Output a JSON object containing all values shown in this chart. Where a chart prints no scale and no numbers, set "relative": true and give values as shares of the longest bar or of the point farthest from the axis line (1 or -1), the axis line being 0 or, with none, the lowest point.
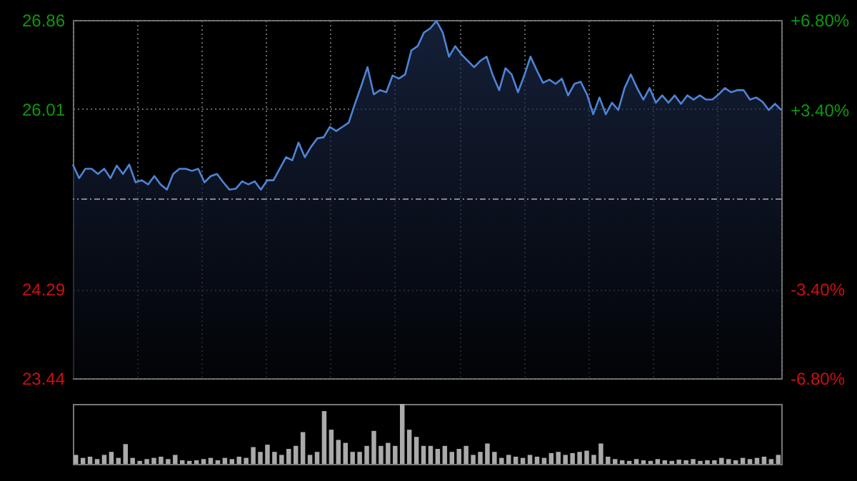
{
  "chart_data": [
    {
      "type": "area",
      "categories": [
        null,
        null,
        null,
        null,
        null,
        null,
        null,
        null,
        null,
        null,
        null,
        null,
        null,
        null,
        null,
        null,
        null,
        null,
        null,
        null,
        null,
        null,
        null,
        null,
        null,
        null,
        null,
        null,
        null,
        null,
        null,
        null,
        null,
        null,
        null,
        null,
        null,
        null,
        null,
        null,
        null,
        null,
        null,
        null,
        null,
        null,
        null,
        null,
        null,
        null,
        null,
        null,
        null,
        null,
        null,
        null,
        null,
        null,
        null,
        null,
        null,
        null,
        null,
        null,
        null,
        null,
        null,
        null,
        null,
        null,
        null,
        null,
        null,
        null,
        null,
        null,
        null,
        null,
        null,
        null,
        null,
        null,
        null,
        null,
        null,
        null,
        null,
        null,
        null,
        null,
        null,
        null,
        null,
        null,
        null,
        null,
        null,
        null,
        null,
        null,
        null,
        null,
        null,
        null,
        null,
        null,
        null,
        null,
        null,
        null,
        null,
        null,
        null,
        null
      ],
      "series": [
        {
          "color": "#4d84d6",
          "values": [
            25.48,
            25.35,
            25.44,
            25.44,
            25.39,
            25.44,
            25.35,
            25.47,
            25.39,
            25.48,
            25.31,
            25.33,
            25.29,
            25.37,
            25.29,
            25.24,
            25.39,
            25.44,
            25.44,
            25.42,
            25.44,
            25.31,
            25.37,
            25.39,
            25.31,
            25.24,
            25.25,
            25.32,
            25.29,
            25.32,
            25.24,
            25.33,
            25.33,
            25.44,
            25.55,
            25.52,
            25.69,
            25.55,
            25.65,
            25.73,
            25.74,
            25.84,
            25.8,
            25.84,
            25.88,
            26.06,
            26.23,
            26.41,
            26.15,
            26.19,
            26.17,
            26.33,
            26.3,
            26.34,
            26.57,
            26.61,
            26.74,
            26.78,
            26.85,
            26.74,
            26.51,
            26.61,
            26.53,
            26.47,
            26.41,
            26.47,
            26.51,
            26.33,
            26.19,
            26.4,
            26.34,
            26.17,
            26.33,
            26.51,
            26.38,
            26.26,
            26.29,
            26.25,
            26.3,
            26.14,
            26.25,
            26.27,
            26.15,
            25.96,
            26.12,
            25.96,
            26.07,
            26.0,
            26.21,
            26.34,
            26.21,
            26.1,
            26.21,
            26.07,
            26.14,
            26.07,
            26.14,
            26.06,
            26.14,
            26.1,
            26.14,
            26.1,
            26.1,
            26.15,
            26.21,
            26.17,
            26.19,
            26.19,
            26.1,
            26.12,
            26.08,
            26.0,
            26.06,
            26.0
          ]
        }
      ],
      "ylim": [
        23.44,
        26.86
      ],
      "yticks": [
        23.44,
        24.29,
        26.01,
        26.86
      ],
      "y2lim": [
        -6.8,
        6.8
      ],
      "y2ticks": [
        {
          "value": -6.8,
          "label": "-6.80%"
        },
        {
          "value": -3.4,
          "label": "-3.40%"
        },
        {
          "value": 3.4,
          "label": "+3.40%"
        },
        {
          "value": 6.8,
          "label": "+6.80%"
        }
      ],
      "ref_lines": [
        {
          "axis": "y",
          "value": 25.15,
          "line_style": "dashdot"
        }
      ],
      "grid": true,
      "tick_labels": "y"
    },
    {
      "type": "bar",
      "relative": true,
      "tick_labels": false,
      "categories": [
        null,
        null,
        null,
        null,
        null,
        null,
        null,
        null,
        null,
        null,
        null,
        null,
        null,
        null,
        null,
        null,
        null,
        null,
        null,
        null,
        null,
        null,
        null,
        null,
        null,
        null,
        null,
        null,
        null,
        null,
        null,
        null,
        null,
        null,
        null,
        null,
        null,
        null,
        null,
        null,
        null,
        null,
        null,
        null,
        null,
        null,
        null,
        null,
        null,
        null,
        null,
        null,
        null,
        null,
        null,
        null,
        null,
        null,
        null,
        null,
        null,
        null,
        null,
        null,
        null,
        null,
        null,
        null,
        null,
        null,
        null,
        null,
        null,
        null,
        null,
        null,
        null,
        null,
        null,
        null,
        null,
        null,
        null,
        null,
        null,
        null,
        null,
        null,
        null,
        null,
        null,
        null,
        null,
        null,
        null,
        null,
        null,
        null,
        null,
        null
      ],
      "series": [
        {
          "color": "#aaaaaa",
          "values": [
            0.15,
            0.1,
            0.12,
            0.08,
            0.15,
            0.2,
            0.1,
            0.33,
            0.1,
            0.05,
            0.08,
            0.1,
            0.12,
            0.08,
            0.15,
            0.06,
            0.05,
            0.06,
            0.08,
            0.1,
            0.06,
            0.1,
            0.08,
            0.12,
            0.1,
            0.28,
            0.2,
            0.32,
            0.2,
            0.15,
            0.25,
            0.3,
            0.53,
            0.15,
            0.2,
            0.88,
            0.57,
            0.4,
            0.35,
            0.2,
            0.2,
            0.3,
            0.55,
            0.3,
            0.35,
            0.3,
            1.0,
            0.57,
            0.45,
            0.3,
            0.3,
            0.25,
            0.3,
            0.2,
            0.25,
            0.3,
            0.15,
            0.2,
            0.34,
            0.2,
            0.1,
            0.15,
            0.12,
            0.1,
            0.15,
            0.12,
            0.1,
            0.18,
            0.2,
            0.15,
            0.18,
            0.2,
            0.22,
            0.15,
            0.34,
            0.12,
            0.08,
            0.06,
            0.05,
            0.08,
            0.06,
            0.05,
            0.08,
            0.06,
            0.05,
            0.07,
            0.06,
            0.08,
            0.05,
            0.06,
            0.06,
            0.1,
            0.08,
            0.06,
            0.1,
            0.08,
            0.1,
            0.12,
            0.08,
            0.15
          ]
        }
      ]
    }
  ]
}
